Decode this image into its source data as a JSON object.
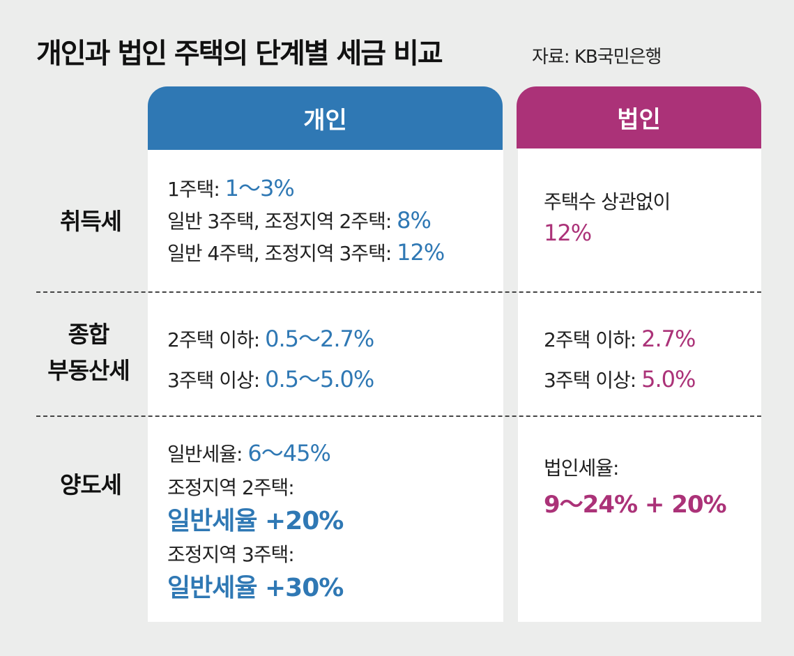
{
  "title": "개인과 법인 주택의 단계별 세금 비교",
  "source": "자료: KB국민은행",
  "headers": {
    "individual": "개인",
    "corporate": "법인"
  },
  "rows": {
    "acquisition": {
      "label": "취득세",
      "individual": [
        {
          "text": "1주택: ",
          "value": "1～3%"
        },
        {
          "text": "일반 3주택, 조정지역 2주택: ",
          "value": "8%"
        },
        {
          "text": "일반 4주택, 조정지역 3주택: ",
          "value": "12%"
        }
      ],
      "corporate": {
        "text": "주택수 상관없이",
        "value": "12%"
      }
    },
    "property": {
      "label_line1": "종합",
      "label_line2": "부동산세",
      "individual": [
        {
          "text": "2주택 이하: ",
          "value": "0.5～2.7%"
        },
        {
          "text": "3주택 이상: ",
          "value": "0.5～5.0%"
        }
      ],
      "corporate": [
        {
          "text": "2주택 이하: ",
          "value": "2.7%"
        },
        {
          "text": "3주택 이상: ",
          "value": "5.0%"
        }
      ]
    },
    "transfer": {
      "label": "양도세",
      "individual": {
        "general_text": "일반세율: ",
        "general_value": "6～45%",
        "adj2_text": "조정지역 2주택:",
        "adj2_value": "일반세율 +20%",
        "adj3_text": "조정지역 3주택:",
        "adj3_value": "일반세율 +30%"
      },
      "corporate": {
        "text": "법인세율:",
        "value": "9～24% + 20%"
      }
    }
  }
}
